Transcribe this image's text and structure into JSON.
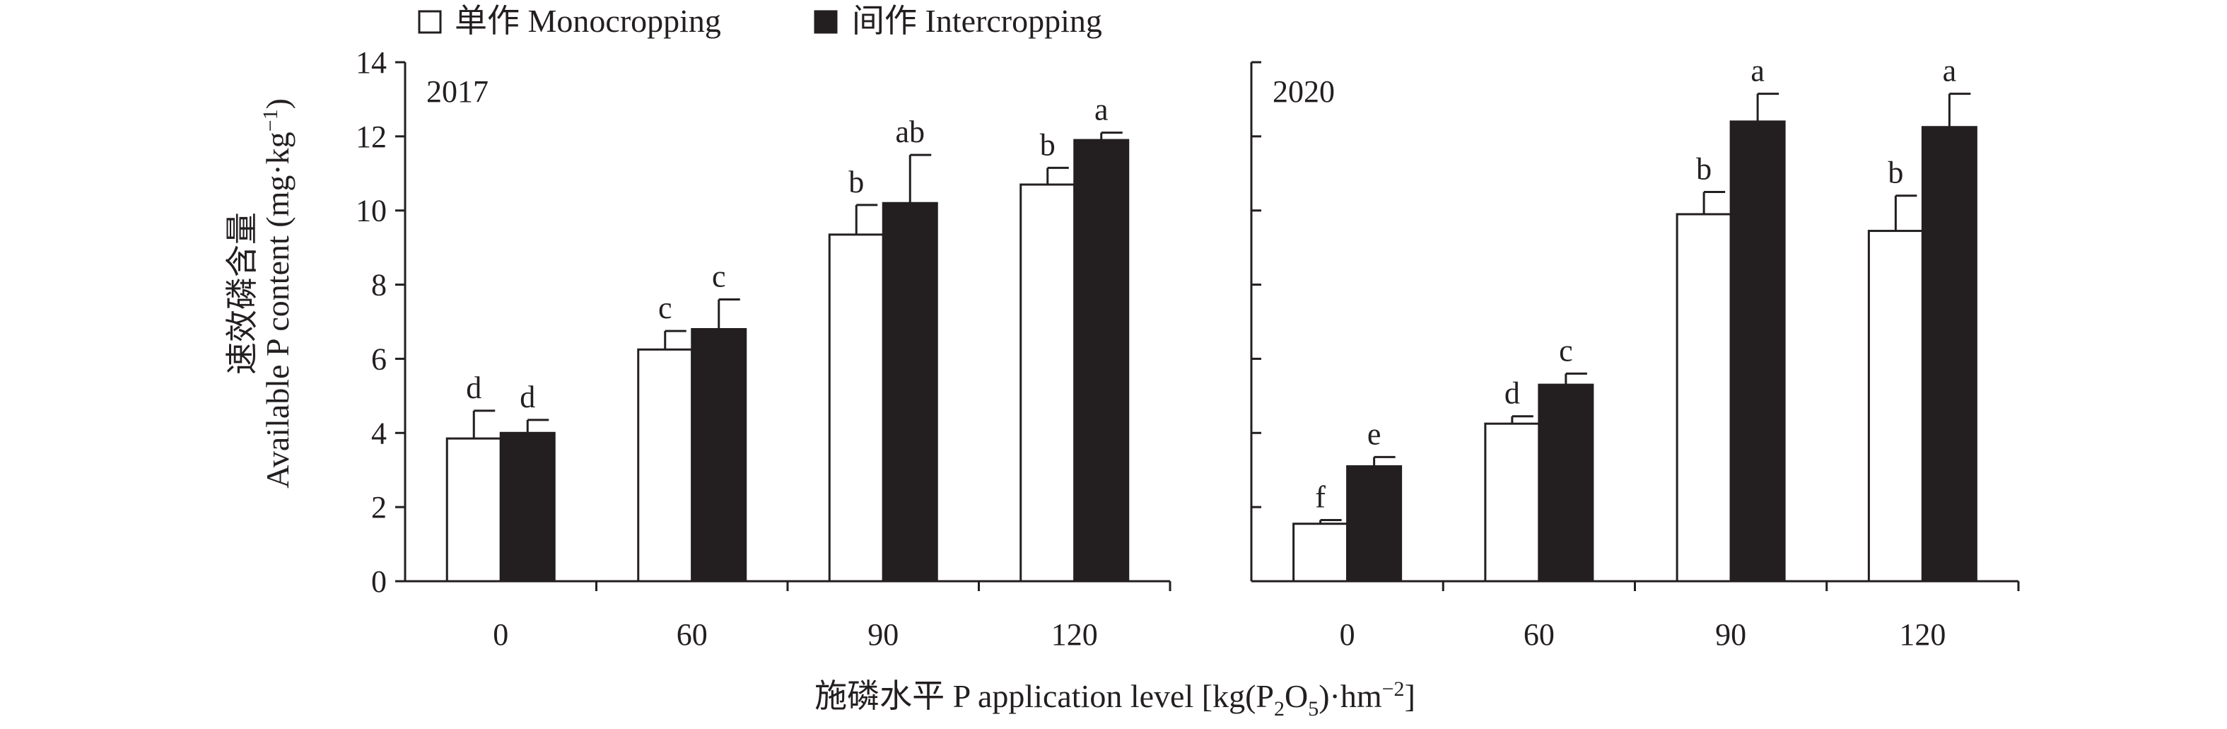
{
  "legend": {
    "series_labels": [
      "单作 Monocropping",
      "间作 Intercropping"
    ],
    "colors": [
      "#ffffff",
      "#231f20"
    ]
  },
  "axes": {
    "ylabel_cn": "速效磷含量",
    "ylabel_en_prefix": "Available P content (mg·kg",
    "ylabel_en_sup": "−1",
    "ylabel_en_suffix": ")",
    "xlabel_prefix": "施磷水平 P application level [kg(P",
    "xlabel_sub1": "2",
    "xlabel_mid": "O",
    "xlabel_sub2": "5",
    "xlabel_mid2": ")·hm",
    "xlabel_sup": "−2",
    "xlabel_suffix": "]",
    "yticks": [
      "0",
      "2",
      "4",
      "6",
      "8",
      "10",
      "12",
      "14"
    ]
  },
  "chart_data": [
    {
      "type": "bar",
      "title": "2017",
      "categories": [
        "0",
        "60",
        "90",
        "120"
      ],
      "ylim": [
        0,
        14
      ],
      "series": [
        {
          "name": "单作 Monocropping",
          "values": [
            3.85,
            6.25,
            9.35,
            10.7
          ],
          "errors": [
            0.75,
            0.5,
            0.8,
            0.45
          ],
          "labels": [
            "d",
            "c",
            "b",
            "b"
          ]
        },
        {
          "name": "间作 Intercropping",
          "values": [
            4.0,
            6.8,
            10.2,
            11.9
          ],
          "errors": [
            0.35,
            0.8,
            1.3,
            0.2
          ],
          "labels": [
            "d",
            "c",
            "ab",
            "a"
          ]
        }
      ]
    },
    {
      "type": "bar",
      "title": "2020",
      "categories": [
        "0",
        "60",
        "90",
        "120"
      ],
      "ylim": [
        0,
        14
      ],
      "series": [
        {
          "name": "单作 Monocropping",
          "values": [
            1.55,
            4.25,
            9.9,
            9.45
          ],
          "errors": [
            0.1,
            0.2,
            0.6,
            0.95
          ],
          "labels": [
            "f",
            "d",
            "b",
            "b"
          ]
        },
        {
          "name": "间作 Intercropping",
          "values": [
            3.1,
            5.3,
            12.4,
            12.25
          ],
          "errors": [
            0.25,
            0.3,
            0.75,
            0.9
          ],
          "labels": [
            "e",
            "c",
            "a",
            "a"
          ]
        }
      ]
    }
  ]
}
